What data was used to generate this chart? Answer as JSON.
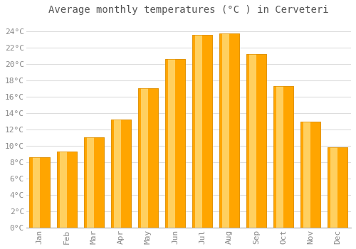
{
  "months": [
    "Jan",
    "Feb",
    "Mar",
    "Apr",
    "May",
    "Jun",
    "Jul",
    "Aug",
    "Sep",
    "Oct",
    "Nov",
    "Dec"
  ],
  "temperatures": [
    8.6,
    9.3,
    11.0,
    13.2,
    17.0,
    20.6,
    23.5,
    23.7,
    21.2,
    17.3,
    12.9,
    9.8
  ],
  "bar_color_main": "#FFA500",
  "bar_color_light": "#FFD060",
  "bar_edge_color": "#E09000",
  "title": "Average monthly temperatures (°C ) in Cerveteri",
  "ylim": [
    0,
    25.5
  ],
  "yticks": [
    0,
    2,
    4,
    6,
    8,
    10,
    12,
    14,
    16,
    18,
    20,
    22,
    24
  ],
  "ytick_labels": [
    "0°C",
    "2°C",
    "4°C",
    "6°C",
    "8°C",
    "10°C",
    "12°C",
    "14°C",
    "16°C",
    "18°C",
    "20°C",
    "22°C",
    "24°C"
  ],
  "background_color": "#FFFFFF",
  "grid_color": "#DDDDDD",
  "title_fontsize": 10,
  "tick_fontsize": 8,
  "tick_color": "#888888",
  "title_color": "#555555"
}
